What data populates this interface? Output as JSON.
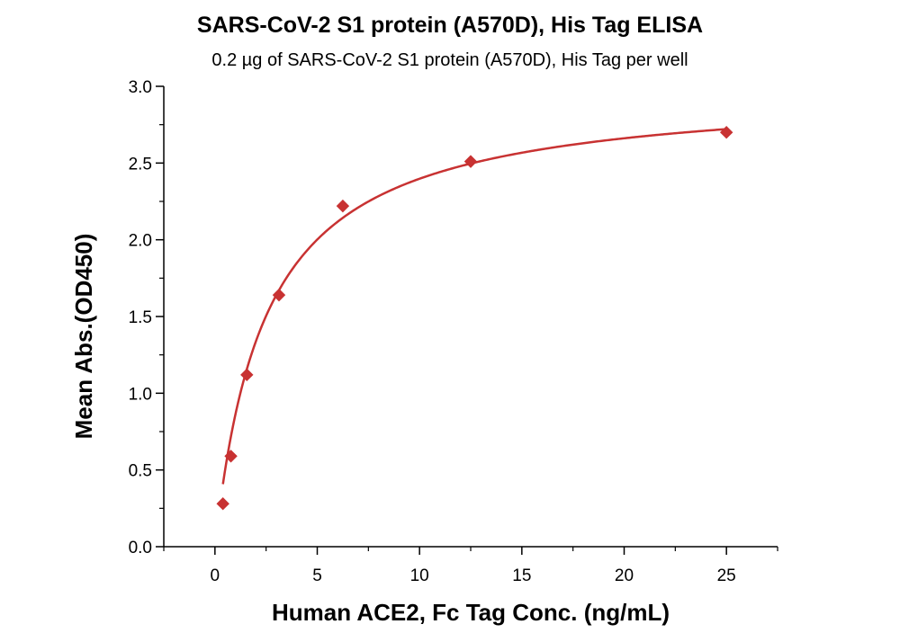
{
  "chart_data": {
    "type": "scatter",
    "title": "SARS-CoV-2 S1 protein (A570D), His Tag ELISA",
    "subtitle": "0.2 µg of SARS-CoV-2 S1 protein (A570D), His Tag per well",
    "xlabel": "Human ACE2, Fc Tag Conc. (ng/mL)",
    "ylabel": "Mean Abs.(OD450)",
    "xlim": [
      -2.5,
      27.5
    ],
    "ylim": [
      0,
      3.0
    ],
    "x_ticks": [
      0,
      5,
      10,
      15,
      20,
      25
    ],
    "y_ticks": [
      0.0,
      0.5,
      1.0,
      1.5,
      2.0,
      2.5,
      3.0
    ],
    "x_tick_labels": [
      "0",
      "5",
      "10",
      "15",
      "20",
      "25"
    ],
    "y_tick_labels": [
      "0.0",
      "0.5",
      "1.0",
      "1.5",
      "2.0",
      "2.5",
      "3.0"
    ],
    "grid": false,
    "color": "#c83232",
    "marker": "diamond",
    "series": [
      {
        "x": [
          0.39,
          0.78,
          1.56,
          3.13,
          6.25,
          12.5,
          25
        ],
        "y": [
          0.28,
          0.59,
          1.12,
          1.64,
          2.22,
          2.51,
          2.7
        ]
      }
    ],
    "fit_curve": {
      "type": "4PL",
      "bottom": 0.0,
      "top": 2.99,
      "ec50": 2.47,
      "hill": 1.0
    }
  }
}
